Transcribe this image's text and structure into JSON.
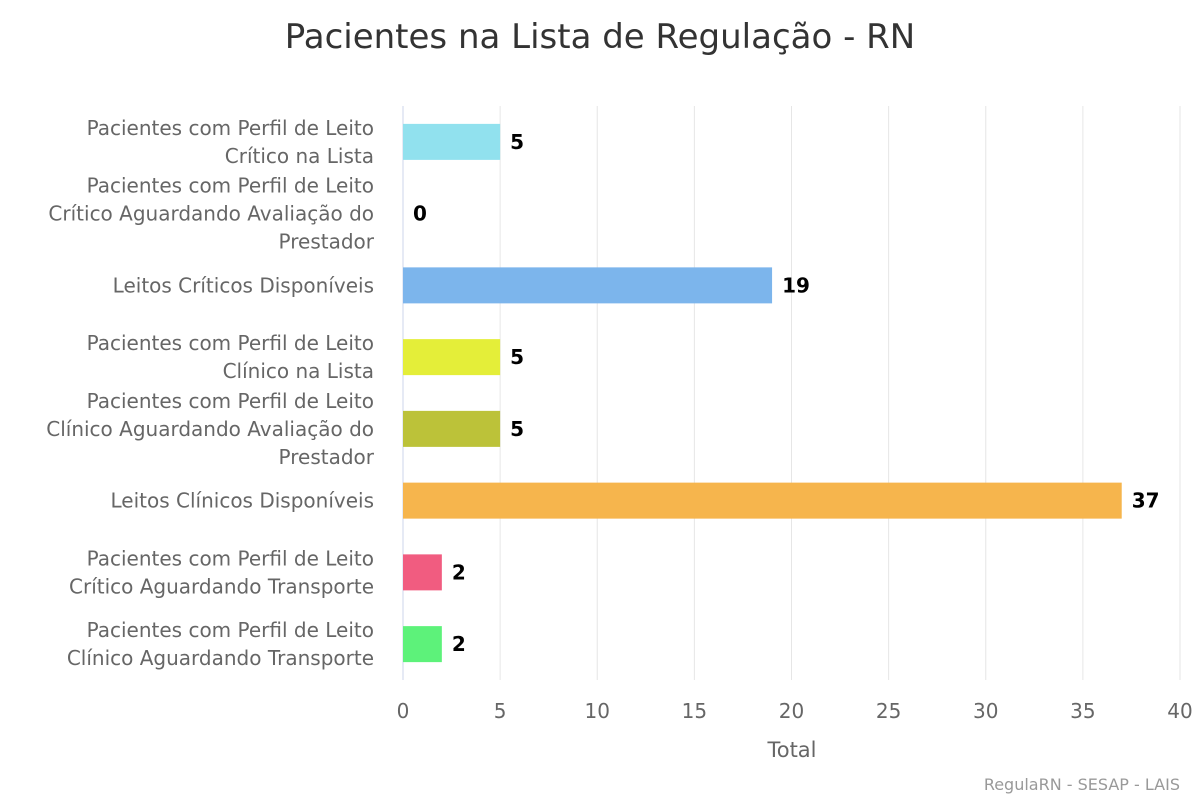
{
  "chart_data": {
    "type": "bar",
    "orientation": "horizontal",
    "title": "Pacientes na Lista de Regulação - RN",
    "xlabel": "Total",
    "ylabel": "",
    "xlim": [
      0,
      40
    ],
    "ticks": [
      0,
      5,
      10,
      15,
      20,
      25,
      30,
      35,
      40
    ],
    "grid": true,
    "legend": "none",
    "categories": [
      [
        "Pacientes com Perfil de Leito",
        "Crítico na Lista"
      ],
      [
        "Pacientes com Perfil de Leito",
        "Crítico Aguardando Avaliação do",
        "Prestador"
      ],
      [
        "Leitos Críticos Disponíveis"
      ],
      [
        "Pacientes com Perfil de Leito",
        "Clínico na Lista"
      ],
      [
        "Pacientes com Perfil de Leito",
        "Clínico Aguardando Avaliação do",
        "Prestador"
      ],
      [
        "Leitos Clínicos Disponíveis"
      ],
      [
        "Pacientes com Perfil de Leito",
        "Crítico Aguardando Transporte"
      ],
      [
        "Pacientes com Perfil de Leito",
        "Clínico Aguardando Transporte"
      ]
    ],
    "values": [
      5,
      0,
      19,
      5,
      5,
      37,
      2,
      2
    ],
    "colors": [
      "#91e1ee",
      "#91e1ee",
      "#7cb5ec",
      "#e4ee39",
      "#bcc239",
      "#f6b54d",
      "#f15c80",
      "#5df27a"
    ]
  },
  "credits": "RegulaRN - SESAP - LAIS"
}
